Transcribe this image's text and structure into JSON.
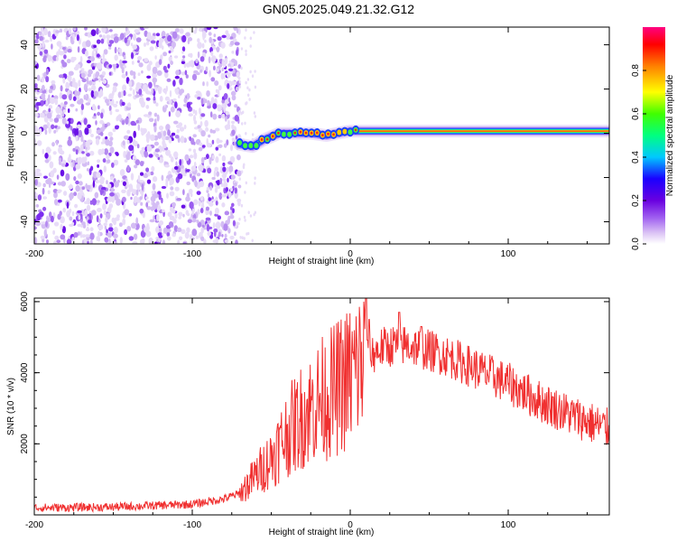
{
  "title": "GN05.2025.049.21.32.G12",
  "chart_data": [
    {
      "type": "heatmap",
      "name": "spectrogram",
      "xlabel": "Height of straight line (km)",
      "ylabel": "Frequency (Hz)",
      "xlim": [
        -200,
        164
      ],
      "ylim": [
        -50,
        48
      ],
      "xticks": [
        -200,
        -100,
        0,
        100
      ],
      "yticks": [
        -40,
        -20,
        0,
        20,
        40
      ],
      "grid": false,
      "noise_region_x": [
        -200,
        -70
      ],
      "signal_track": [
        {
          "x": -70,
          "y": -5
        },
        {
          "x": -62,
          "y": -6
        },
        {
          "x": -55,
          "y": -3
        },
        {
          "x": -45,
          "y": 0
        },
        {
          "x": -35,
          "y": 0
        },
        {
          "x": -25,
          "y": 0
        },
        {
          "x": -15,
          "y": -1
        },
        {
          "x": -8,
          "y": 0
        },
        {
          "x": 0,
          "y": 1
        },
        {
          "x": 10,
          "y": 1
        },
        {
          "x": 50,
          "y": 1
        },
        {
          "x": 100,
          "y": 1
        },
        {
          "x": 164,
          "y": 1
        }
      ],
      "colorbar": {
        "label": "Normalized spectral amplitude",
        "range": [
          0,
          1
        ],
        "ticks": [
          "0.0",
          "0.2",
          "0.4",
          "0.6",
          "0.8"
        ],
        "colors": [
          "#ffffff",
          "#dcc4f5",
          "#a060f0",
          "#6a00e0",
          "#1a00ff",
          "#00c8ff",
          "#00ff80",
          "#40ff00",
          "#ffff00",
          "#ff8000",
          "#ff0000",
          "#ff0080"
        ]
      }
    },
    {
      "type": "line",
      "name": "snr",
      "xlabel": "Height of straight line (km)",
      "ylabel": "SNR (10 * v/v)",
      "xlim": [
        -200,
        164
      ],
      "ylim": [
        0,
        6100
      ],
      "xticks": [
        -200,
        -100,
        0,
        100
      ],
      "yticks": [
        2000,
        4000,
        6000
      ],
      "grid": false,
      "color": "#f03030",
      "envelope": {
        "x": [
          -200,
          -150,
          -100,
          -80,
          -70,
          -60,
          -50,
          -40,
          -30,
          -20,
          -10,
          0,
          10,
          20,
          30,
          40,
          60,
          80,
          100,
          120,
          140,
          164
        ],
        "y": [
          200,
          220,
          300,
          450,
          600,
          1100,
          1600,
          2300,
          2800,
          3200,
          3500,
          3900,
          4400,
          4700,
          4800,
          4750,
          4500,
          4100,
          3700,
          3200,
          2800,
          2400
        ]
      },
      "peaks": [
        {
          "x": 10,
          "y": 6100
        },
        {
          "x": 12,
          "y": 5500
        },
        {
          "x": 31,
          "y": 5700
        },
        {
          "x": 45,
          "y": 5300
        }
      ]
    }
  ]
}
